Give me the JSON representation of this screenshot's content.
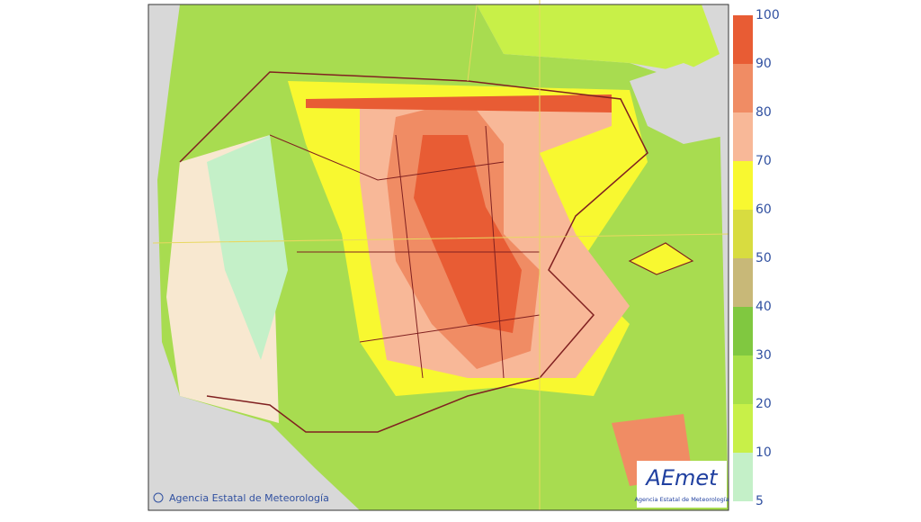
{
  "legend": {
    "ticks": [
      5,
      10,
      20,
      30,
      40,
      50,
      60,
      70,
      80,
      90,
      100
    ],
    "colors": [
      "#c4f0c8",
      "#c8f048",
      "#a8e048",
      "#80c840",
      "#c8b878",
      "#d8dc40",
      "#f8f830",
      "#f8b898",
      "#f08c64",
      "#e85c34"
    ]
  },
  "copyright": "Agencia Estatal de Meteorología",
  "logo": {
    "name": "AEmet",
    "subtitle": "Agencia Estatal de Meteorología"
  }
}
